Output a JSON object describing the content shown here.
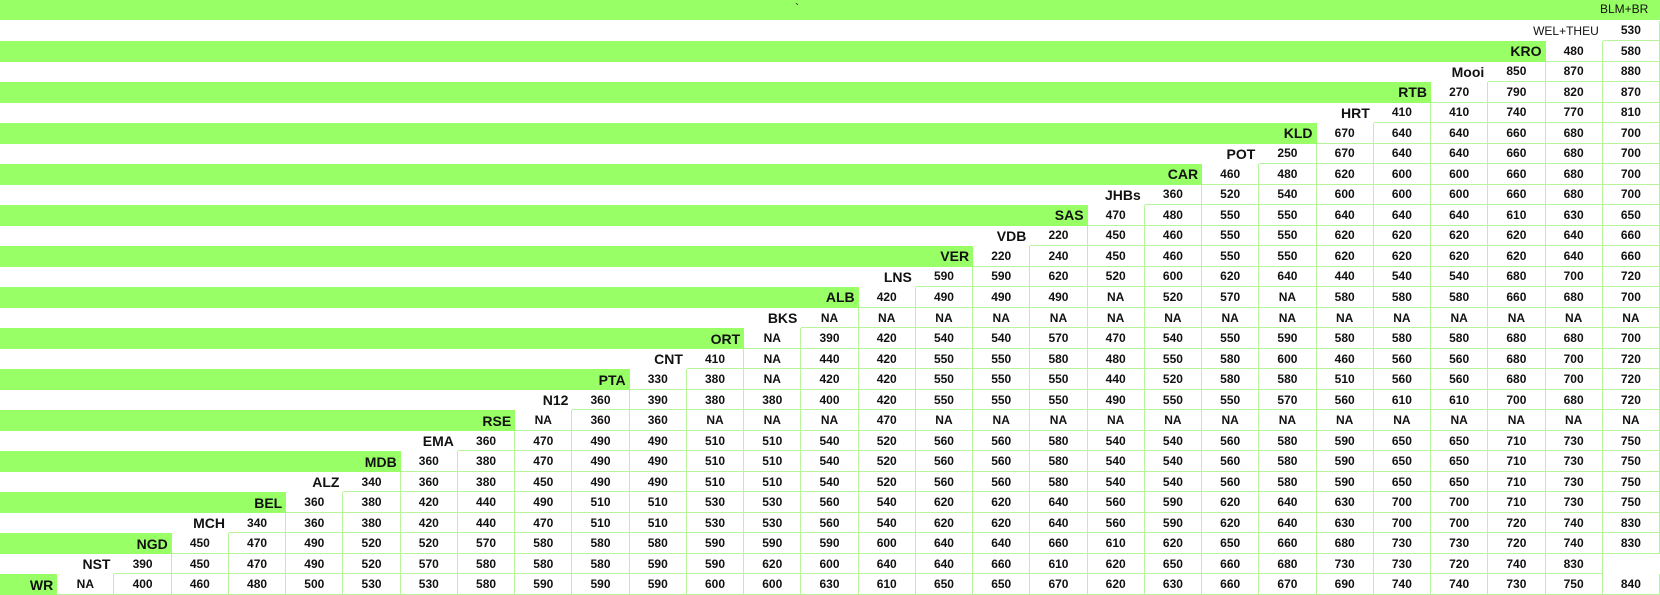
{
  "header": {
    "mark": "`",
    "corner": "BLM+BR"
  },
  "rows": [
    {
      "label": "WEL+THEU",
      "values": [
        530
      ]
    },
    {
      "label": "KRO",
      "values": [
        480,
        580
      ]
    },
    {
      "label": "Mooi",
      "values": [
        850,
        870,
        880
      ]
    },
    {
      "label": "RTB",
      "values": [
        270,
        790,
        820,
        870
      ]
    },
    {
      "label": "HRT",
      "values": [
        410,
        410,
        740,
        770,
        810
      ]
    },
    {
      "label": "KLD",
      "values": [
        670,
        640,
        640,
        660,
        680,
        700
      ]
    },
    {
      "label": "POT",
      "values": [
        250,
        670,
        640,
        640,
        660,
        680,
        700
      ]
    },
    {
      "label": "CAR",
      "values": [
        460,
        480,
        620,
        600,
        600,
        660,
        680,
        700
      ]
    },
    {
      "label": "JHBs",
      "values": [
        360,
        520,
        540,
        600,
        600,
        600,
        660,
        680,
        700
      ]
    },
    {
      "label": "SAS",
      "values": [
        470,
        480,
        550,
        550,
        640,
        640,
        640,
        610,
        630,
        650
      ]
    },
    {
      "label": "VDB",
      "values": [
        220,
        450,
        460,
        550,
        550,
        620,
        620,
        620,
        620,
        640,
        660
      ]
    },
    {
      "label": "VER",
      "values": [
        220,
        240,
        450,
        460,
        550,
        550,
        620,
        620,
        620,
        620,
        640,
        660
      ]
    },
    {
      "label": "LNS",
      "values": [
        590,
        590,
        620,
        520,
        600,
        620,
        640,
        440,
        540,
        540,
        680,
        700,
        720
      ]
    },
    {
      "label": "ALB",
      "values": [
        420,
        490,
        490,
        490,
        "NA",
        520,
        570,
        "NA",
        580,
        580,
        580,
        660,
        680,
        700
      ]
    },
    {
      "label": "BKS",
      "values": [
        "NA",
        "NA",
        "NA",
        "NA",
        "NA",
        "NA",
        "NA",
        "NA",
        "NA",
        "NA",
        "NA",
        "NA",
        "NA",
        "NA",
        "NA"
      ]
    },
    {
      "label": "ORT",
      "values": [
        "NA",
        390,
        420,
        540,
        540,
        570,
        470,
        540,
        550,
        590,
        580,
        580,
        580,
        680,
        680,
        700
      ]
    },
    {
      "label": "CNT",
      "values": [
        410,
        "NA",
        440,
        420,
        550,
        550,
        580,
        480,
        550,
        580,
        600,
        460,
        560,
        560,
        680,
        700,
        720
      ]
    },
    {
      "label": "PTA",
      "values": [
        330,
        380,
        "NA",
        420,
        420,
        550,
        550,
        550,
        440,
        520,
        580,
        580,
        510,
        560,
        560,
        680,
        700,
        720
      ]
    },
    {
      "label": "N12",
      "values": [
        360,
        390,
        380,
        380,
        400,
        420,
        550,
        550,
        550,
        490,
        550,
        550,
        570,
        560,
        610,
        610,
        700,
        680,
        720
      ]
    },
    {
      "label": "RSE",
      "values": [
        "NA",
        360,
        360,
        "NA",
        "NA",
        "NA",
        470,
        "NA",
        "NA",
        "NA",
        "NA",
        "NA",
        "NA",
        "NA",
        "NA",
        "NA",
        "NA",
        "NA",
        "NA",
        "NA"
      ]
    },
    {
      "label": "EMA",
      "values": [
        360,
        470,
        490,
        490,
        510,
        510,
        540,
        520,
        560,
        560,
        580,
        540,
        540,
        560,
        580,
        590,
        650,
        650,
        710,
        730,
        750
      ]
    },
    {
      "label": "MDB",
      "values": [
        360,
        380,
        470,
        490,
        490,
        510,
        510,
        540,
        520,
        560,
        560,
        580,
        540,
        540,
        560,
        580,
        590,
        650,
        650,
        710,
        730,
        750
      ]
    },
    {
      "label": "ALZ",
      "values": [
        340,
        360,
        380,
        450,
        490,
        490,
        510,
        510,
        540,
        520,
        560,
        560,
        580,
        540,
        540,
        560,
        580,
        590,
        650,
        650,
        710,
        730,
        750
      ]
    },
    {
      "label": "BEL",
      "values": [
        360,
        380,
        420,
        440,
        490,
        510,
        510,
        530,
        530,
        560,
        540,
        620,
        620,
        640,
        560,
        590,
        620,
        640,
        630,
        700,
        700,
        710,
        730,
        750
      ]
    },
    {
      "label": "MCH",
      "values": [
        340,
        360,
        380,
        420,
        440,
        470,
        510,
        510,
        530,
        530,
        560,
        540,
        620,
        620,
        640,
        560,
        590,
        620,
        640,
        630,
        700,
        700,
        720,
        740,
        830
      ]
    },
    {
      "label": "NGD",
      "values": [
        450,
        470,
        490,
        520,
        520,
        570,
        580,
        580,
        580,
        590,
        590,
        590,
        600,
        640,
        640,
        660,
        610,
        620,
        650,
        660,
        680,
        730,
        730,
        720,
        740,
        830
      ]
    },
    {
      "label": "NST",
      "values": [
        390,
        450,
        470,
        490,
        520,
        570,
        580,
        580,
        580,
        590,
        590,
        620,
        600,
        640,
        640,
        660,
        610,
        620,
        650,
        660,
        680,
        730,
        730,
        720,
        740,
        830
      ]
    },
    {
      "label": "WR",
      "values": [
        "NA",
        400,
        460,
        480,
        500,
        530,
        530,
        580,
        590,
        590,
        590,
        600,
        600,
        630,
        610,
        650,
        650,
        670,
        620,
        630,
        660,
        670,
        690,
        740,
        740,
        730,
        750,
        840
      ]
    }
  ]
}
